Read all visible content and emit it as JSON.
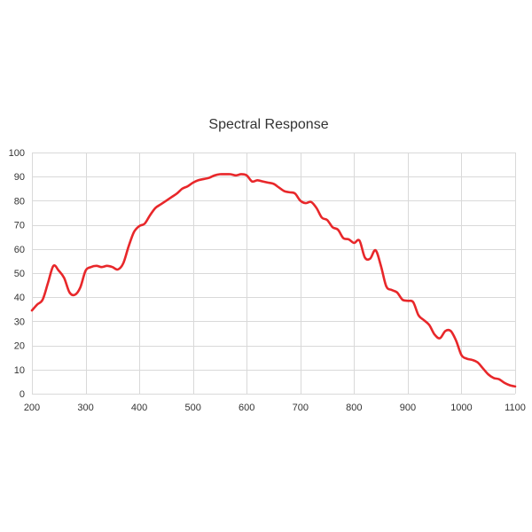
{
  "chart_data": {
    "type": "line",
    "title": "Spectral Response",
    "xlabel": "",
    "ylabel": "",
    "xlim": [
      200,
      1100
    ],
    "ylim": [
      0,
      100
    ],
    "x_ticks": [
      200,
      300,
      400,
      500,
      600,
      700,
      800,
      900,
      1000,
      1100
    ],
    "y_ticks": [
      0,
      10,
      20,
      30,
      40,
      50,
      60,
      70,
      80,
      90,
      100
    ],
    "grid": true,
    "legend": "none",
    "series": [
      {
        "color": "#e8272a",
        "x": [
          200,
          210,
          220,
          230,
          240,
          250,
          260,
          270,
          280,
          290,
          300,
          310,
          320,
          330,
          340,
          350,
          360,
          370,
          380,
          390,
          400,
          410,
          420,
          430,
          440,
          450,
          460,
          470,
          480,
          490,
          500,
          510,
          520,
          530,
          540,
          550,
          560,
          570,
          580,
          590,
          600,
          610,
          620,
          630,
          640,
          650,
          660,
          670,
          680,
          690,
          700,
          710,
          720,
          730,
          740,
          750,
          760,
          770,
          780,
          790,
          800,
          810,
          820,
          830,
          840,
          850,
          860,
          870,
          880,
          890,
          900,
          910,
          920,
          930,
          940,
          950,
          960,
          970,
          980,
          990,
          1000,
          1010,
          1020,
          1030,
          1040,
          1050,
          1060,
          1070,
          1080,
          1090,
          1100
        ],
        "values": [
          34.5,
          37,
          39,
          46,
          53,
          51,
          48,
          42,
          41,
          44,
          51,
          52.5,
          53,
          52.5,
          53,
          52.5,
          51.5,
          54,
          61,
          67,
          69.5,
          70.5,
          74,
          77,
          78.5,
          80,
          81.5,
          83,
          85,
          86,
          87.5,
          88.5,
          89,
          89.5,
          90.5,
          91,
          91,
          91,
          90.5,
          91,
          90.5,
          88,
          88.5,
          88,
          87.5,
          87,
          85.5,
          84,
          83.5,
          83,
          80,
          79,
          79.5,
          77,
          73,
          72,
          69,
          68,
          64.5,
          64,
          62.5,
          63.5,
          56.5,
          56,
          59.5,
          53,
          44.5,
          43,
          42,
          39,
          38.5,
          38,
          32.5,
          30.5,
          28.5,
          24.5,
          23,
          26,
          26,
          22,
          16,
          14.5,
          14,
          13,
          10.5,
          8,
          6.5,
          6,
          4.5,
          3.5,
          3
        ]
      }
    ]
  }
}
